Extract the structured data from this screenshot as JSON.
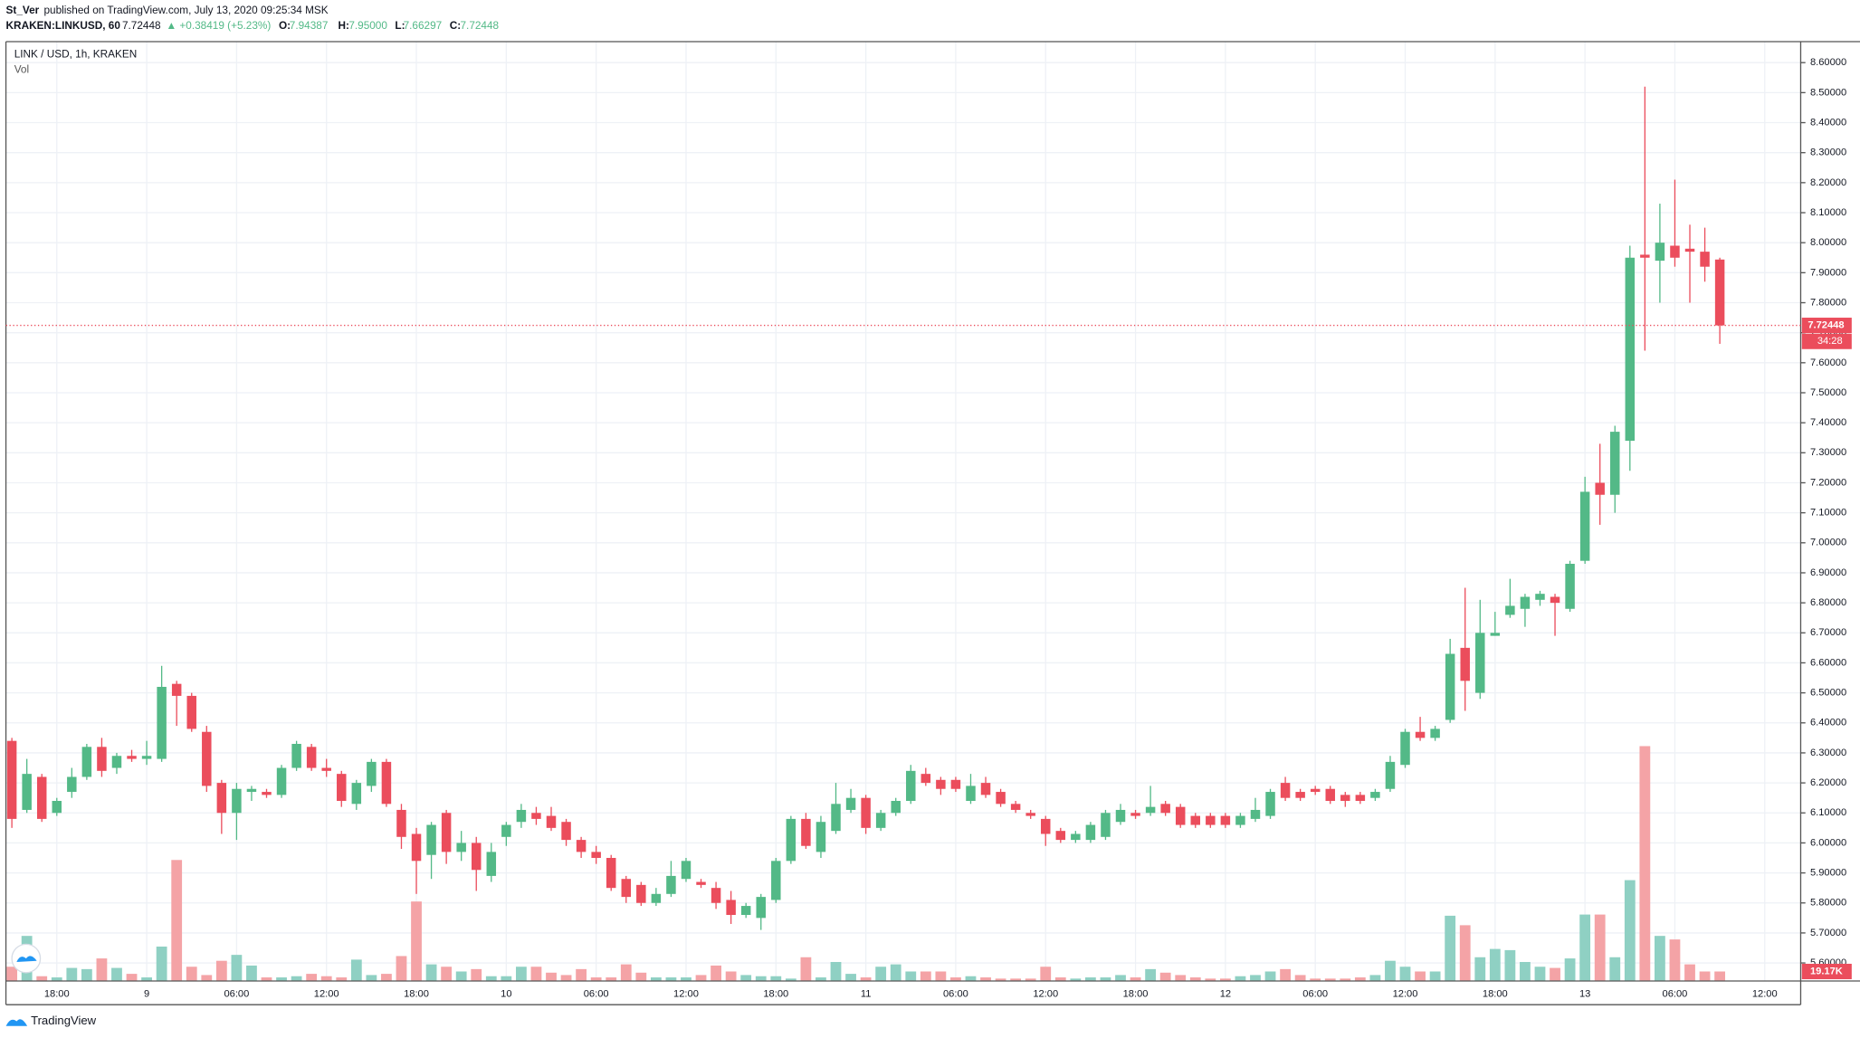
{
  "header": {
    "author": "St_Ver",
    "published": "published on TradingView.com, July 13, 2020 09:25:34 MSK",
    "symbol": "KRAKEN:LINKUSD, 60",
    "last": "7.72448",
    "change": "▲ +0.38419 (+5.23%)",
    "open_label": "O:",
    "open": "7.94387",
    "high_label": "H:",
    "high": "7.95000",
    "low_label": "L:",
    "low": "7.66297",
    "close_label": "C:",
    "close": "7.72448"
  },
  "footer": {
    "brand": "TradingView"
  },
  "chart_data": {
    "type": "candlestick",
    "title": "LINK / USD, 1h, KRAKEN",
    "volume_title": "Vol",
    "up_color": "#53b987",
    "down_color": "#eb4d5c",
    "volume_up_color": "#8fd0c3",
    "volume_down_color": "#f4a3a6",
    "grid": true,
    "countdown": "34:28",
    "last_volume_label": "19.17K",
    "categories": [
      null,
      null,
      null,
      "18:00",
      null,
      null,
      null,
      null,
      null,
      "9",
      null,
      null,
      null,
      null,
      null,
      "06:00",
      null,
      null,
      null,
      null,
      null,
      "12:00",
      null,
      null,
      null,
      null,
      null,
      "18:00",
      null,
      null,
      null,
      null,
      null,
      "10",
      null,
      null,
      null,
      null,
      null,
      "06:00",
      null,
      null,
      null,
      null,
      null,
      "12:00",
      null,
      null,
      null,
      null,
      null,
      "18:00",
      null,
      null,
      null,
      null,
      null,
      "11",
      null,
      null,
      null,
      null,
      null,
      "06:00",
      null,
      null,
      null,
      null,
      null,
      "12:00",
      null,
      null,
      null,
      null,
      null,
      "18:00",
      null,
      null,
      null,
      null,
      null,
      "12",
      null,
      null,
      null,
      null,
      null,
      "06:00",
      null,
      null,
      null,
      null,
      null,
      "12:00",
      null,
      null,
      null,
      null,
      null,
      "18:00",
      null,
      null,
      null,
      null,
      null,
      "13",
      null,
      null,
      null,
      null,
      null,
      "06:00",
      null,
      null,
      null,
      null,
      null,
      "12:00"
    ],
    "open": [
      6.34,
      6.11,
      6.22,
      6.1,
      6.17,
      6.22,
      6.32,
      6.25,
      6.29,
      6.28,
      6.28,
      6.53,
      6.49,
      6.37,
      6.2,
      6.1,
      6.17,
      6.17,
      6.16,
      6.25,
      6.32,
      6.25,
      6.23,
      6.13,
      6.19,
      6.27,
      6.11,
      6.03,
      5.96,
      6.1,
      5.97,
      6.0,
      5.89,
      6.02,
      6.07,
      6.1,
      6.09,
      6.07,
      6.01,
      5.97,
      5.95,
      5.88,
      5.86,
      5.8,
      5.83,
      5.88,
      5.87,
      5.85,
      5.81,
      5.76,
      5.75,
      5.81,
      5.94,
      6.08,
      5.97,
      6.04,
      6.11,
      6.15,
      6.05,
      6.1,
      6.14,
      6.23,
      6.21,
      6.21,
      6.14,
      6.2,
      6.17,
      6.13,
      6.1,
      6.08,
      6.04,
      6.01,
      6.01,
      6.02,
      6.07,
      6.1,
      6.1,
      6.13,
      6.12,
      6.09,
      6.09,
      6.09,
      6.06,
      6.08,
      6.09,
      6.2,
      6.17,
      6.18,
      6.18,
      6.16,
      6.16,
      6.15,
      6.18,
      6.26,
      6.37,
      6.35,
      6.41,
      6.65,
      6.5,
      6.69,
      6.76,
      6.78,
      6.81,
      6.82,
      6.78,
      6.94,
      7.2,
      7.16,
      7.34,
      7.96,
      7.94,
      7.99,
      7.98,
      7.97,
      7.94387,
      null,
      null,
      null
    ],
    "high": [
      6.35,
      6.28,
      6.23,
      6.15,
      6.25,
      6.33,
      6.35,
      6.3,
      6.31,
      6.34,
      6.59,
      6.54,
      6.5,
      6.39,
      6.21,
      6.2,
      6.19,
      6.18,
      6.26,
      6.34,
      6.33,
      6.28,
      6.24,
      6.21,
      6.28,
      6.28,
      6.13,
      6.05,
      6.07,
      6.11,
      6.04,
      6.02,
      6.0,
      6.07,
      6.13,
      6.12,
      6.12,
      6.08,
      6.02,
      5.99,
      5.96,
      5.89,
      5.87,
      5.85,
      5.94,
      5.95,
      5.88,
      5.87,
      5.84,
      5.8,
      5.83,
      5.95,
      6.09,
      6.1,
      6.09,
      6.2,
      6.18,
      6.16,
      6.11,
      6.15,
      6.26,
      6.25,
      6.22,
      6.22,
      6.23,
      6.22,
      6.18,
      6.14,
      6.11,
      6.09,
      6.05,
      6.04,
      6.07,
      6.11,
      6.13,
      6.11,
      6.19,
      6.14,
      6.13,
      6.1,
      6.1,
      6.1,
      6.1,
      6.15,
      6.18,
      6.22,
      6.18,
      6.19,
      6.19,
      6.17,
      6.17,
      6.18,
      6.29,
      6.38,
      6.42,
      6.39,
      6.68,
      6.85,
      6.81,
      6.77,
      6.88,
      6.83,
      6.84,
      6.83,
      6.94,
      7.22,
      7.33,
      7.39,
      7.99,
      8.52,
      8.13,
      8.21,
      8.06,
      8.05,
      7.95,
      null,
      null,
      null
    ],
    "low": [
      6.05,
      6.1,
      6.07,
      6.09,
      6.15,
      6.21,
      6.22,
      6.23,
      6.27,
      6.26,
      6.27,
      6.39,
      6.37,
      6.17,
      6.03,
      6.01,
      6.14,
      6.15,
      6.15,
      6.24,
      6.24,
      6.22,
      6.12,
      6.11,
      6.17,
      6.12,
      5.98,
      5.83,
      5.88,
      5.93,
      5.94,
      5.84,
      5.87,
      5.99,
      6.05,
      6.06,
      6.04,
      5.99,
      5.95,
      5.93,
      5.84,
      5.8,
      5.79,
      5.79,
      5.82,
      5.87,
      5.85,
      5.78,
      5.73,
      5.75,
      5.71,
      5.8,
      5.93,
      5.98,
      5.95,
      6.03,
      6.1,
      6.03,
      6.04,
      6.09,
      6.13,
      6.19,
      6.16,
      6.17,
      6.13,
      6.15,
      6.12,
      6.1,
      6.08,
      5.99,
      6.0,
      6.0,
      6.0,
      6.01,
      6.06,
      6.08,
      6.09,
      6.09,
      6.05,
      6.05,
      6.05,
      6.05,
      6.05,
      6.07,
      6.08,
      6.14,
      6.14,
      6.16,
      6.13,
      6.12,
      6.13,
      6.14,
      6.17,
      6.25,
      6.34,
      6.34,
      6.4,
      6.44,
      6.48,
      6.69,
      6.75,
      6.72,
      6.79,
      6.69,
      6.77,
      6.93,
      7.06,
      7.1,
      7.24,
      7.64,
      7.8,
      7.92,
      7.8,
      7.87,
      7.66297,
      null,
      null,
      null
    ],
    "close": [
      6.08,
      6.23,
      6.08,
      6.14,
      6.22,
      6.32,
      6.24,
      6.29,
      6.28,
      6.29,
      6.52,
      6.49,
      6.38,
      6.19,
      6.1,
      6.18,
      6.18,
      6.16,
      6.25,
      6.33,
      6.25,
      6.24,
      6.14,
      6.2,
      6.27,
      6.13,
      6.02,
      5.94,
      6.06,
      5.97,
      6.0,
      5.91,
      5.97,
      6.06,
      6.11,
      6.08,
      6.05,
      6.01,
      5.97,
      5.95,
      5.85,
      5.82,
      5.8,
      5.83,
      5.89,
      5.94,
      5.86,
      5.8,
      5.76,
      5.79,
      5.82,
      5.94,
      6.08,
      5.99,
      6.07,
      6.13,
      6.15,
      6.05,
      6.1,
      6.14,
      6.24,
      6.2,
      6.18,
      6.18,
      6.19,
      6.16,
      6.13,
      6.11,
      6.09,
      6.03,
      6.01,
      6.03,
      6.06,
      6.1,
      6.11,
      6.09,
      6.12,
      6.1,
      6.06,
      6.06,
      6.06,
      6.06,
      6.09,
      6.11,
      6.17,
      6.15,
      6.15,
      6.17,
      6.14,
      6.14,
      6.14,
      6.17,
      6.27,
      6.37,
      6.35,
      6.38,
      6.63,
      6.54,
      6.7,
      6.7,
      6.79,
      6.82,
      6.83,
      6.8,
      6.93,
      7.17,
      7.16,
      7.37,
      7.95,
      7.95,
      8.0,
      7.95,
      7.97,
      7.92,
      7.72448,
      null,
      null,
      null
    ],
    "volume": [
      28800,
      91200,
      9600,
      7200,
      26400,
      24000,
      45600,
      26400,
      14400,
      7200,
      69600,
      244800,
      28800,
      12000,
      40800,
      52800,
      31200,
      7200,
      7200,
      9600,
      14400,
      9600,
      7200,
      43200,
      12000,
      14400,
      50400,
      160800,
      33600,
      28800,
      19200,
      24000,
      9600,
      9600,
      28800,
      28800,
      16800,
      12000,
      24000,
      7200,
      7200,
      33600,
      16800,
      7200,
      7200,
      7200,
      12000,
      31200,
      19200,
      12000,
      9600,
      9600,
      4800,
      48000,
      7200,
      38400,
      14400,
      7200,
      28800,
      33600,
      19200,
      19200,
      19200,
      7200,
      9600,
      7200,
      4800,
      4800,
      4800,
      28800,
      7200,
      4800,
      7200,
      7200,
      12000,
      7200,
      24000,
      16800,
      12000,
      7200,
      4800,
      4800,
      9600,
      12000,
      19200,
      24000,
      12000,
      4800,
      4800,
      4800,
      7200,
      12000,
      40800,
      28800,
      19200,
      19200,
      132000,
      112800,
      48000,
      64800,
      62400,
      38400,
      28800,
      26400,
      45600,
      134400,
      134400,
      48000,
      204000,
      475200,
      91200,
      84000,
      33600,
      19200,
      19170,
      null,
      null,
      null
    ],
    "ylim": [
      5.54,
      8.67
    ],
    "volume_ylim": [
      0,
      600000
    ],
    "yticks": [
      {
        "value": 5.6,
        "label": "5.60000"
      },
      {
        "value": 5.7,
        "label": "5.70000"
      },
      {
        "value": 5.8,
        "label": "5.80000"
      },
      {
        "value": 5.9,
        "label": "5.90000"
      },
      {
        "value": 6.0,
        "label": "6.00000"
      },
      {
        "value": 6.1,
        "label": "6.10000"
      },
      {
        "value": 6.2,
        "label": "6.20000"
      },
      {
        "value": 6.3,
        "label": "6.30000"
      },
      {
        "value": 6.4,
        "label": "6.40000"
      },
      {
        "value": 6.5,
        "label": "6.50000"
      },
      {
        "value": 6.6,
        "label": "6.60000"
      },
      {
        "value": 6.7,
        "label": "6.70000"
      },
      {
        "value": 6.8,
        "label": "6.80000"
      },
      {
        "value": 6.9,
        "label": "6.90000"
      },
      {
        "value": 7.0,
        "label": "7.00000"
      },
      {
        "value": 7.1,
        "label": "7.10000"
      },
      {
        "value": 7.2,
        "label": "7.20000"
      },
      {
        "value": 7.3,
        "label": "7.30000"
      },
      {
        "value": 7.4,
        "label": "7.40000"
      },
      {
        "value": 7.5,
        "label": "7.50000"
      },
      {
        "value": 7.6,
        "label": "7.60000"
      },
      {
        "value": 7.7,
        "label": "7.70000"
      },
      {
        "value": 7.8,
        "label": "7.80000"
      },
      {
        "value": 7.9,
        "label": "7.90000"
      },
      {
        "value": 8.0,
        "label": "8.00000"
      },
      {
        "value": 8.1,
        "label": "8.10000"
      },
      {
        "value": 8.2,
        "label": "8.20000"
      },
      {
        "value": 8.3,
        "label": "8.30000"
      },
      {
        "value": 8.4,
        "label": "8.40000"
      },
      {
        "value": 8.5,
        "label": "8.50000"
      },
      {
        "value": 8.6,
        "label": "8.60000"
      }
    ]
  }
}
